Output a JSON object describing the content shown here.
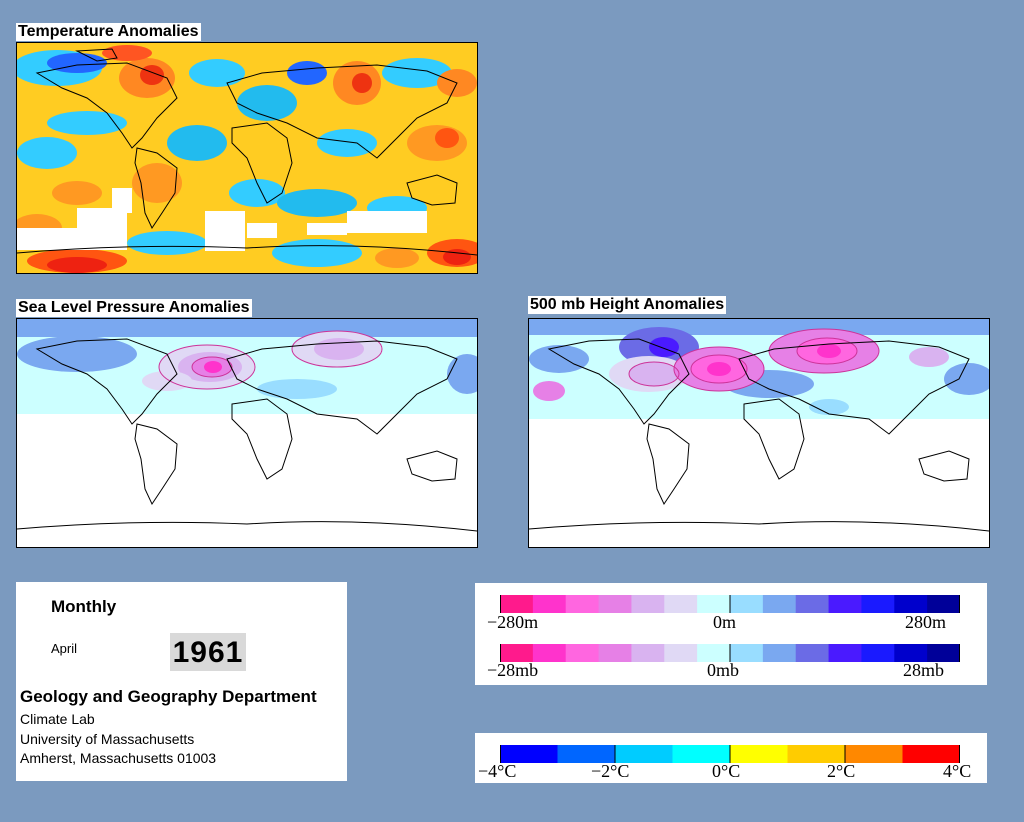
{
  "panels": {
    "temperature": {
      "title": "Temperature Anomalies"
    },
    "slp": {
      "title": "Sea Level Pressure Anomalies"
    },
    "height": {
      "title": "500 mb Height Anomalies"
    }
  },
  "info": {
    "mode": "Monthly",
    "month": "April",
    "year": "1961",
    "department": "Geology and Geography Department",
    "line1": "Climate Lab",
    "line2": "University of Massachusetts",
    "line3": "Amherst, Massachusetts 01003"
  },
  "legends": {
    "height": {
      "left": "−280m",
      "mid": "0m",
      "right": "280m"
    },
    "pressure": {
      "left": "−28mb",
      "mid": "0mb",
      "right": "28mb"
    },
    "temperature": {
      "labels": [
        "−4°C",
        "−2°C",
        "0°C",
        "2°C",
        "4°C"
      ]
    }
  },
  "colors": {
    "background": "#7b9abf",
    "anomaly_scale": [
      "#ff1a8c",
      "#ff33cc",
      "#ff66e0",
      "#e680e6",
      "#d9b3f0",
      "#e0d9f5",
      "#ccffff",
      "#99ddff",
      "#7aa8f0",
      "#6b6be6",
      "#4a1aff",
      "#1a1aff",
      "#0000cc",
      "#000099"
    ],
    "temperature_scale": [
      "#0000ff",
      "#0066ff",
      "#00ccff",
      "#00ffff",
      "#ffff00",
      "#ffcc00",
      "#ff8800",
      "#ff0000"
    ]
  }
}
